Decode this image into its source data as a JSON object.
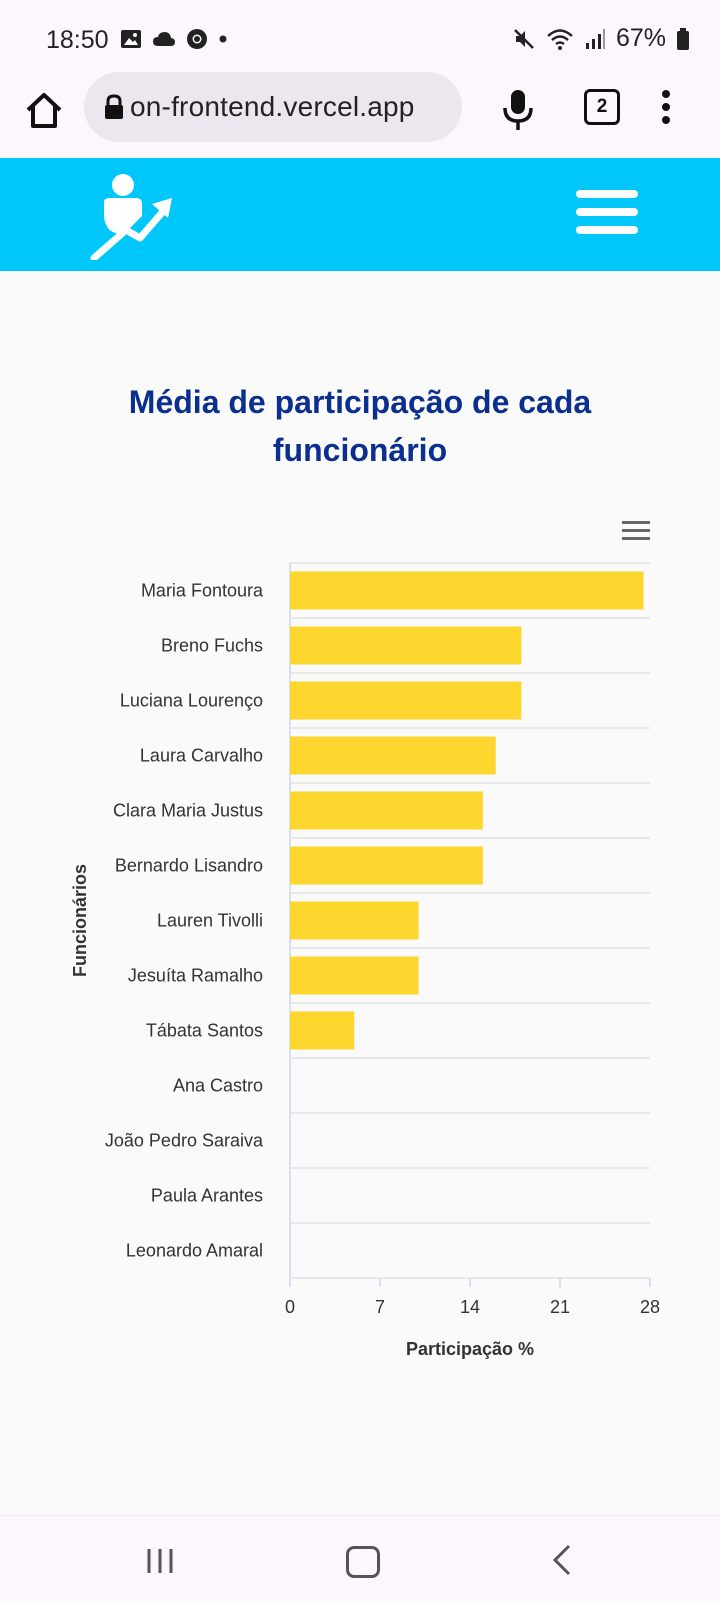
{
  "status_bar": {
    "time": "18:50",
    "battery": "67%"
  },
  "browser": {
    "url": "on-frontend.vercel.app",
    "tab_count": "2"
  },
  "chart_data": {
    "type": "bar",
    "orientation": "horizontal",
    "title": "Média de participação de cada funcionário",
    "xlabel": "Participação %",
    "ylabel": "Funcionários",
    "categories": [
      "Maria Fontoura",
      "Breno Fuchs",
      "Luciana Lourenço",
      "Laura Carvalho",
      "Clara Maria Justus",
      "Bernardo Lisandro",
      "Lauren Tivolli",
      "Jesuíta Ramalho",
      "Tábata Santos",
      "Ana Castro",
      "João Pedro Saraiva",
      "Paula Arantes",
      "Leonardo Amaral"
    ],
    "values": [
      27.5,
      18,
      18,
      16,
      15,
      15,
      10,
      10,
      5,
      0,
      0,
      0,
      0
    ],
    "xlim": [
      0,
      28
    ],
    "xticks": [
      "0",
      "7",
      "14",
      "21",
      "28"
    ],
    "bar_color": "#fdd72d",
    "grid": true
  }
}
